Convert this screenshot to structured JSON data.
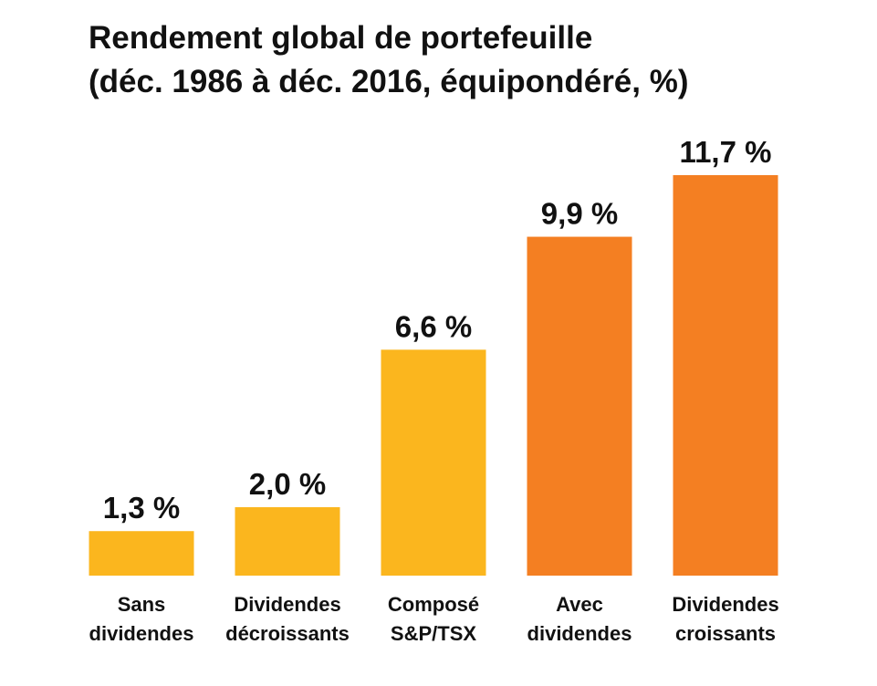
{
  "chart_data": {
    "type": "bar",
    "title": [
      "Rendement global de portefeuille",
      "(déc. 1986 à déc. 2016, équipondéré, %)"
    ],
    "categories": [
      [
        "Sans",
        "dividendes"
      ],
      [
        "Dividendes",
        "décroissants"
      ],
      [
        "Composé",
        "S&P/TSX"
      ],
      [
        "Avec",
        "dividendes"
      ],
      [
        "Dividendes",
        "croissants"
      ]
    ],
    "values": [
      1.3,
      2.0,
      6.6,
      9.9,
      11.7
    ],
    "data_labels": [
      "1,3 %",
      "2,0 %",
      "6,6 %",
      "9,9 %",
      "11,7 %"
    ],
    "bar_colors": [
      "#FBB61E",
      "#FBB61E",
      "#FBB61E",
      "#F47F22",
      "#F47F22"
    ],
    "ylim": [
      0,
      11.7
    ],
    "grid": false,
    "legend": "none"
  }
}
